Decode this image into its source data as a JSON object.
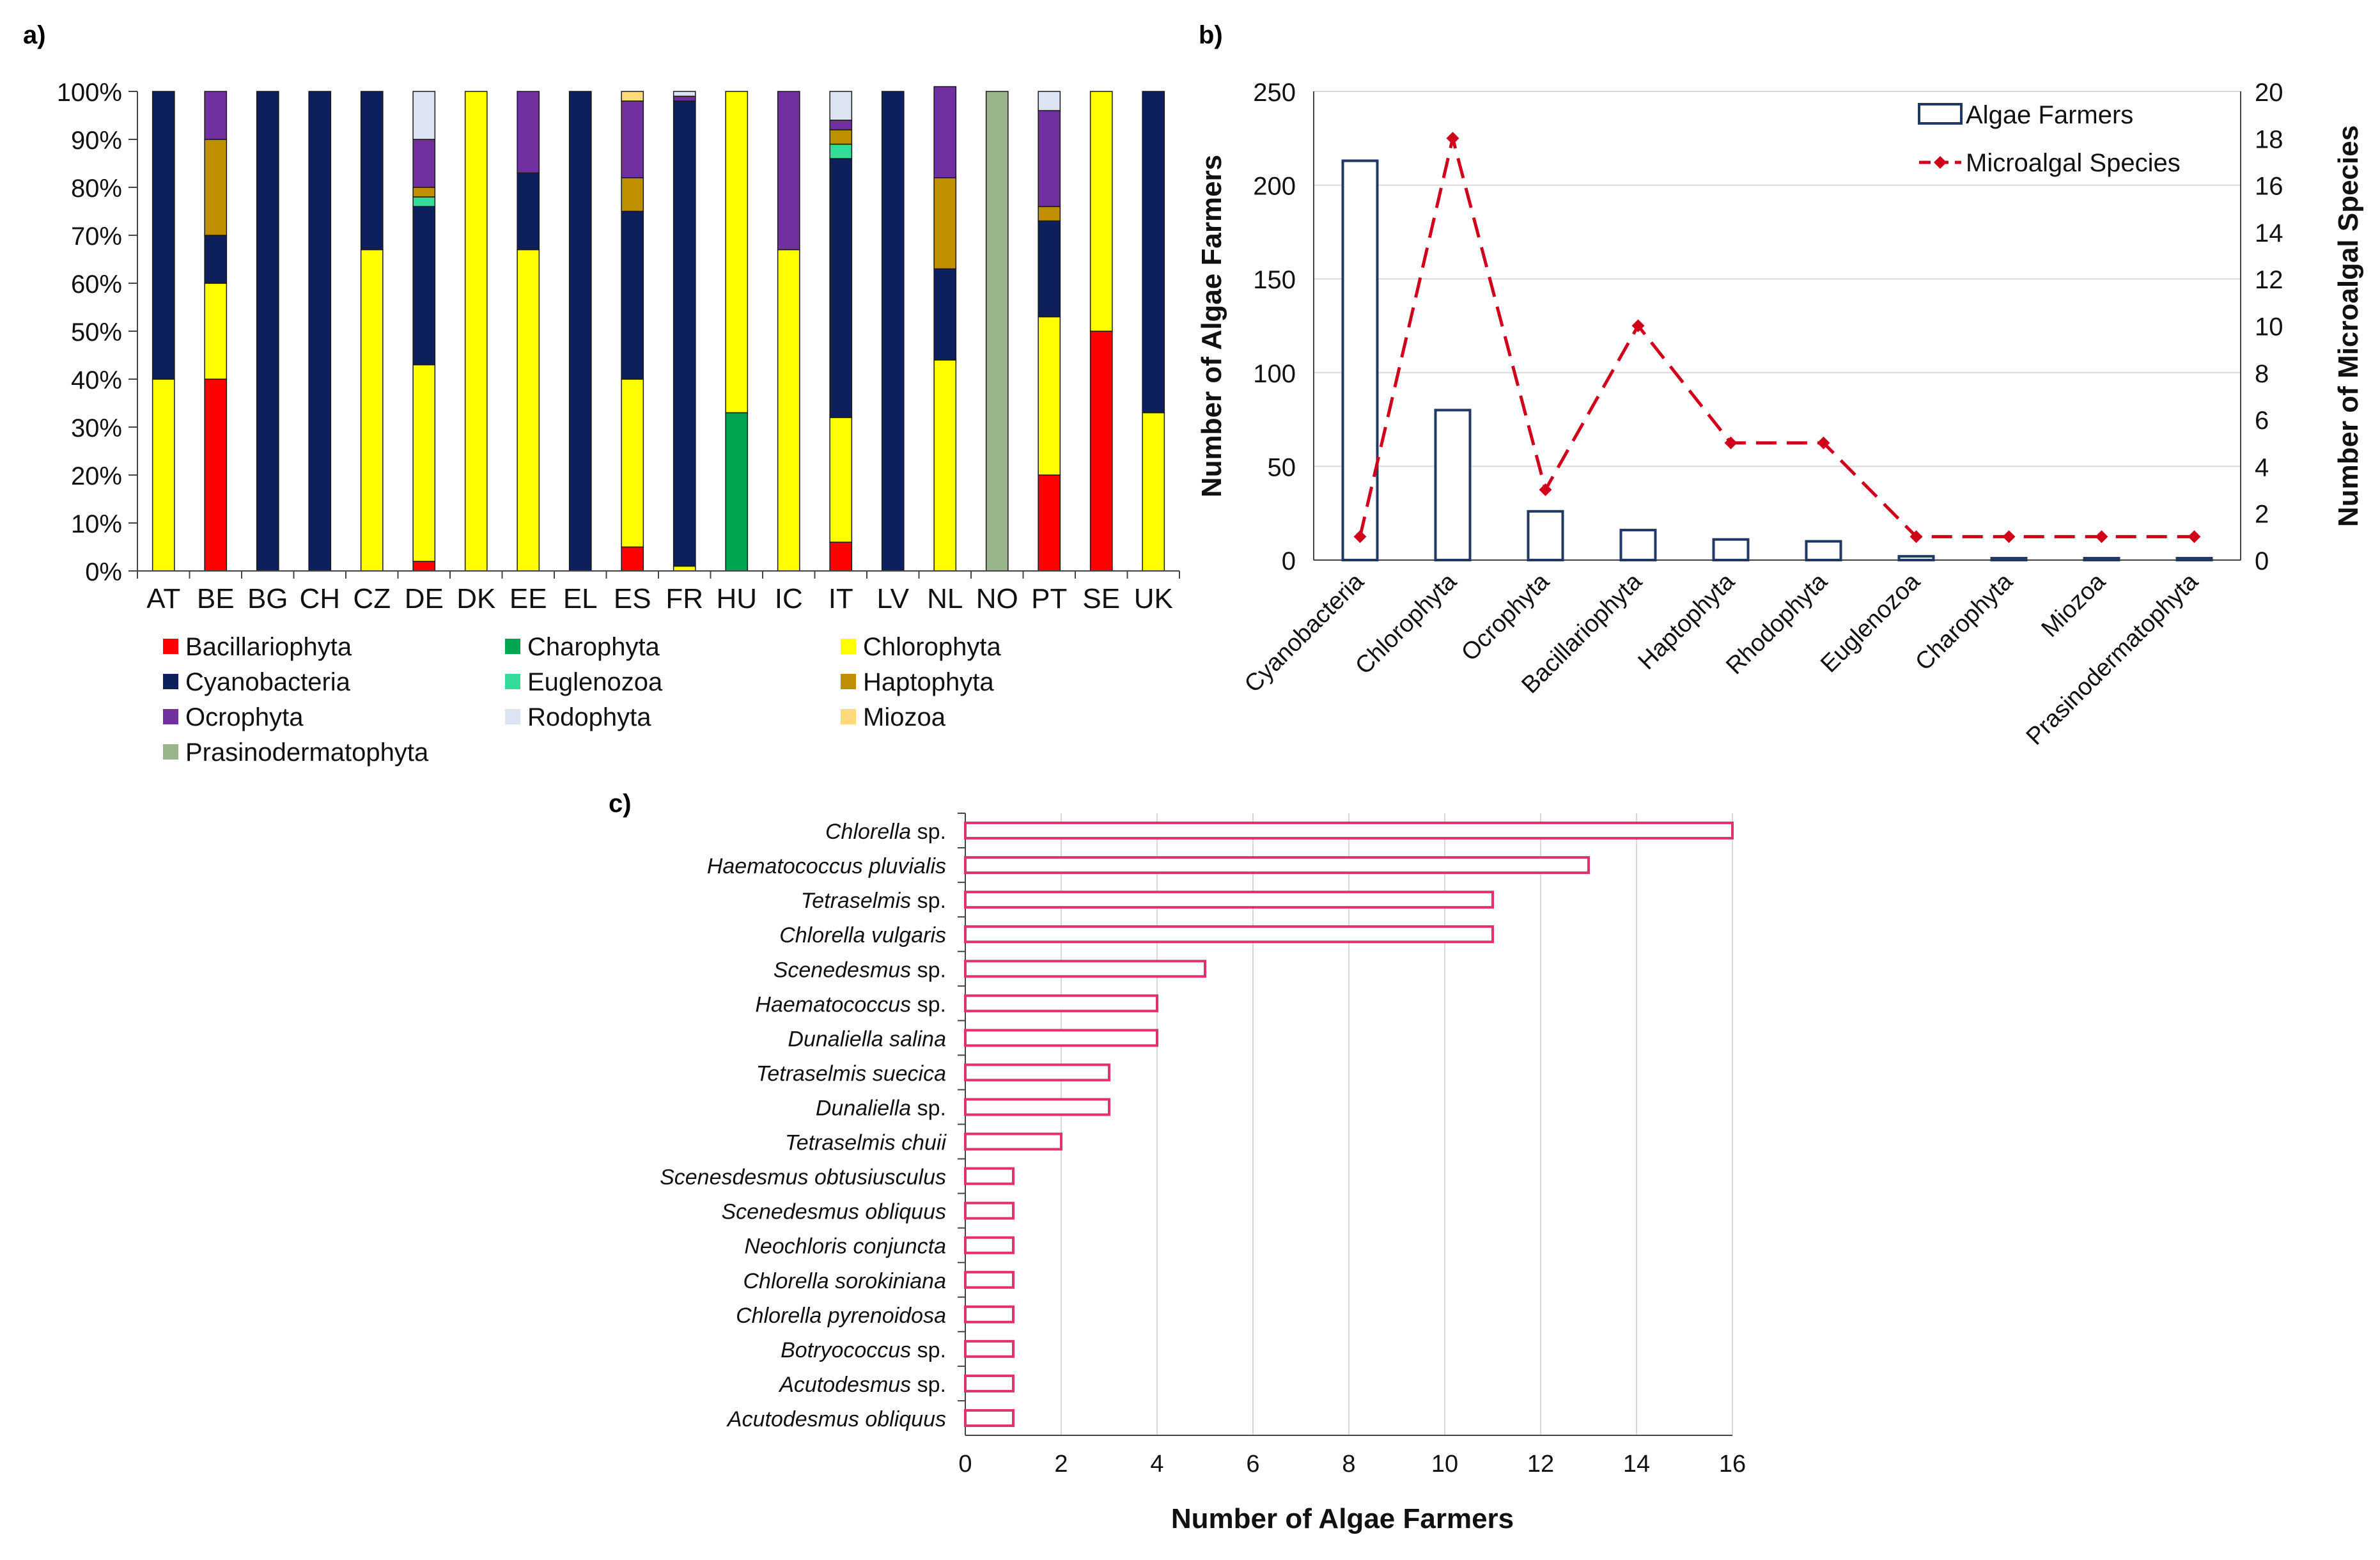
{
  "panels": {
    "a": "a)",
    "b": "b)",
    "c": "c)"
  },
  "colors": {
    "Bacillariophyta": "#ff0000",
    "Charophyta": "#00a651",
    "Chlorophyta": "#ffff00",
    "Cyanobacteria": "#0d1f5c",
    "Euglenozoa": "#33dd99",
    "Haptophyta": "#bf8f00",
    "Ocrophyta": "#7030a0",
    "Rodophyta": "#dce3f2",
    "Miozoa": "#ffd97a",
    "Prasinodermatophyta": "#9ab58a",
    "algae_bar_edge": "#1f3864",
    "species_line": "#d0021b",
    "panel_c_edge": "#e0326e"
  },
  "chart_data": [
    {
      "id": "a",
      "type": "bar",
      "stacked": true,
      "title": "",
      "categories": [
        "AT",
        "BE",
        "BG",
        "CH",
        "CZ",
        "DE",
        "DK",
        "EE",
        "EL",
        "ES",
        "FR",
        "HU",
        "IC",
        "IT",
        "LV",
        "NL",
        "NO",
        "PT",
        "SE",
        "UK"
      ],
      "yticks": [
        "0%",
        "10%",
        "20%",
        "30%",
        "40%",
        "50%",
        "60%",
        "70%",
        "80%",
        "90%",
        "100%"
      ],
      "ylim": [
        0,
        100
      ],
      "legend": [
        "Bacillariophyta",
        "Charophyta",
        "Chlorophyta",
        "Cyanobacteria",
        "Euglenozoa",
        "Haptophyta",
        "Ocrophyta",
        "Rodophyta",
        "Miozoa",
        "Prasinodermatophyta"
      ],
      "series": [
        {
          "name": "Bacillariophyta",
          "values": [
            0,
            40,
            0,
            0,
            0,
            2,
            0,
            0,
            0,
            5,
            0,
            0,
            0,
            6,
            0,
            0,
            0,
            20,
            50,
            0
          ]
        },
        {
          "name": "Charophyta",
          "values": [
            0,
            0,
            0,
            0,
            0,
            0,
            0,
            0,
            0,
            0,
            0,
            33,
            0,
            0,
            0,
            0,
            0,
            0,
            0,
            0
          ]
        },
        {
          "name": "Chlorophyta",
          "values": [
            40,
            20,
            0,
            0,
            67,
            41,
            100,
            67,
            0,
            35,
            1,
            67,
            67,
            26,
            0,
            44,
            0,
            33,
            50,
            33
          ]
        },
        {
          "name": "Cyanobacteria",
          "values": [
            60,
            10,
            100,
            100,
            33,
            33,
            0,
            16,
            100,
            35,
            97,
            0,
            0,
            54,
            100,
            19,
            0,
            20,
            0,
            67
          ]
        },
        {
          "name": "Euglenozoa",
          "values": [
            0,
            0,
            0,
            0,
            0,
            2,
            0,
            0,
            0,
            0,
            0,
            0,
            0,
            3,
            0,
            0,
            0,
            0,
            0,
            0
          ]
        },
        {
          "name": "Haptophyta",
          "values": [
            0,
            20,
            0,
            0,
            0,
            2,
            0,
            0,
            0,
            7,
            0,
            0,
            0,
            3,
            0,
            19,
            0,
            3,
            0,
            0
          ]
        },
        {
          "name": "Ocrophyta",
          "values": [
            0,
            10,
            0,
            0,
            0,
            10,
            0,
            17,
            0,
            16,
            1,
            0,
            33,
            2,
            0,
            19,
            0,
            20,
            0,
            0
          ]
        },
        {
          "name": "Rodophyta",
          "values": [
            0,
            0,
            0,
            0,
            0,
            10,
            0,
            0,
            0,
            0,
            1,
            0,
            0,
            6,
            0,
            0,
            0,
            4,
            0,
            0
          ]
        },
        {
          "name": "Miozoa",
          "values": [
            0,
            0,
            0,
            0,
            0,
            0,
            0,
            0,
            0,
            2,
            0,
            0,
            0,
            0,
            0,
            0,
            0,
            0,
            0,
            0
          ]
        },
        {
          "name": "Prasinodermatophyta",
          "values": [
            0,
            0,
            0,
            0,
            0,
            0,
            0,
            0,
            0,
            0,
            0,
            0,
            0,
            0,
            0,
            0,
            100,
            0,
            0,
            0
          ]
        }
      ]
    },
    {
      "id": "b",
      "type": "bar",
      "title": "",
      "categories": [
        "Cyanobacteria",
        "Chlorophyta",
        "Ocrophyta",
        "Bacillariophyta",
        "Haptophyta",
        "Rhodophyta",
        "Euglenozoa",
        "Charophyta",
        "Miozoa",
        "Prasinodermatophyta"
      ],
      "ylabel": "Number of Algae Farmers",
      "y2label": "Number of Microalgal Species",
      "ylim": [
        0,
        250
      ],
      "y2lim": [
        0,
        20
      ],
      "yticks": [
        "0",
        "50",
        "100",
        "150",
        "200",
        "250"
      ],
      "y2ticks": [
        "0",
        "2",
        "4",
        "6",
        "8",
        "10",
        "12",
        "14",
        "16",
        "18",
        "20"
      ],
      "series": [
        {
          "name": "Algae Farmers",
          "type": "bar",
          "values": [
            213,
            80,
            26,
            16,
            11,
            10,
            2,
            1,
            1,
            1
          ]
        },
        {
          "name": "Microalgal Species",
          "type": "line",
          "axis": "right",
          "values": [
            1,
            18,
            3,
            10,
            5,
            5,
            1,
            1,
            1,
            1
          ]
        }
      ]
    },
    {
      "id": "c",
      "type": "bar",
      "orientation": "horizontal",
      "title": "",
      "xlabel": "Number of Algae Farmers",
      "xlim": [
        0,
        16
      ],
      "xticks": [
        "0",
        "2",
        "4",
        "6",
        "8",
        "10",
        "12",
        "14",
        "16"
      ],
      "categories": [
        {
          "italic": "Chlorella",
          "suffix": " sp."
        },
        {
          "italic": "Haematococcus pluvialis",
          "suffix": ""
        },
        {
          "italic": "Tetraselmis",
          "suffix": " sp."
        },
        {
          "italic": "Chlorella vulgaris",
          "suffix": ""
        },
        {
          "italic": "Scenedesmus",
          "suffix": " sp."
        },
        {
          "italic": "Haematococcus",
          "suffix": " sp."
        },
        {
          "italic": "Dunaliella salina",
          "suffix": ""
        },
        {
          "italic": "Tetraselmis suecica",
          "suffix": ""
        },
        {
          "italic": "Dunaliella",
          "suffix": " sp."
        },
        {
          "italic": "Tetraselmis chuii",
          "suffix": ""
        },
        {
          "italic": "Scenesdesmus obtusiusculus",
          "suffix": ""
        },
        {
          "italic": "Scenedesmus obliquus",
          "suffix": ""
        },
        {
          "italic": "Neochloris conjuncta",
          "suffix": ""
        },
        {
          "italic": "Chlorella sorokiniana",
          "suffix": ""
        },
        {
          "italic": "Chlorella pyrenoidosa",
          "suffix": ""
        },
        {
          "italic": "Botryococcus",
          "suffix": " sp."
        },
        {
          "italic": "Acutodesmus",
          "suffix": " sp."
        },
        {
          "italic": "Acutodesmus obliquus",
          "suffix": ""
        }
      ],
      "values": [
        16,
        13,
        11,
        11,
        5,
        4,
        4,
        3,
        3,
        2,
        1,
        1,
        1,
        1,
        1,
        1,
        1,
        1
      ]
    }
  ]
}
